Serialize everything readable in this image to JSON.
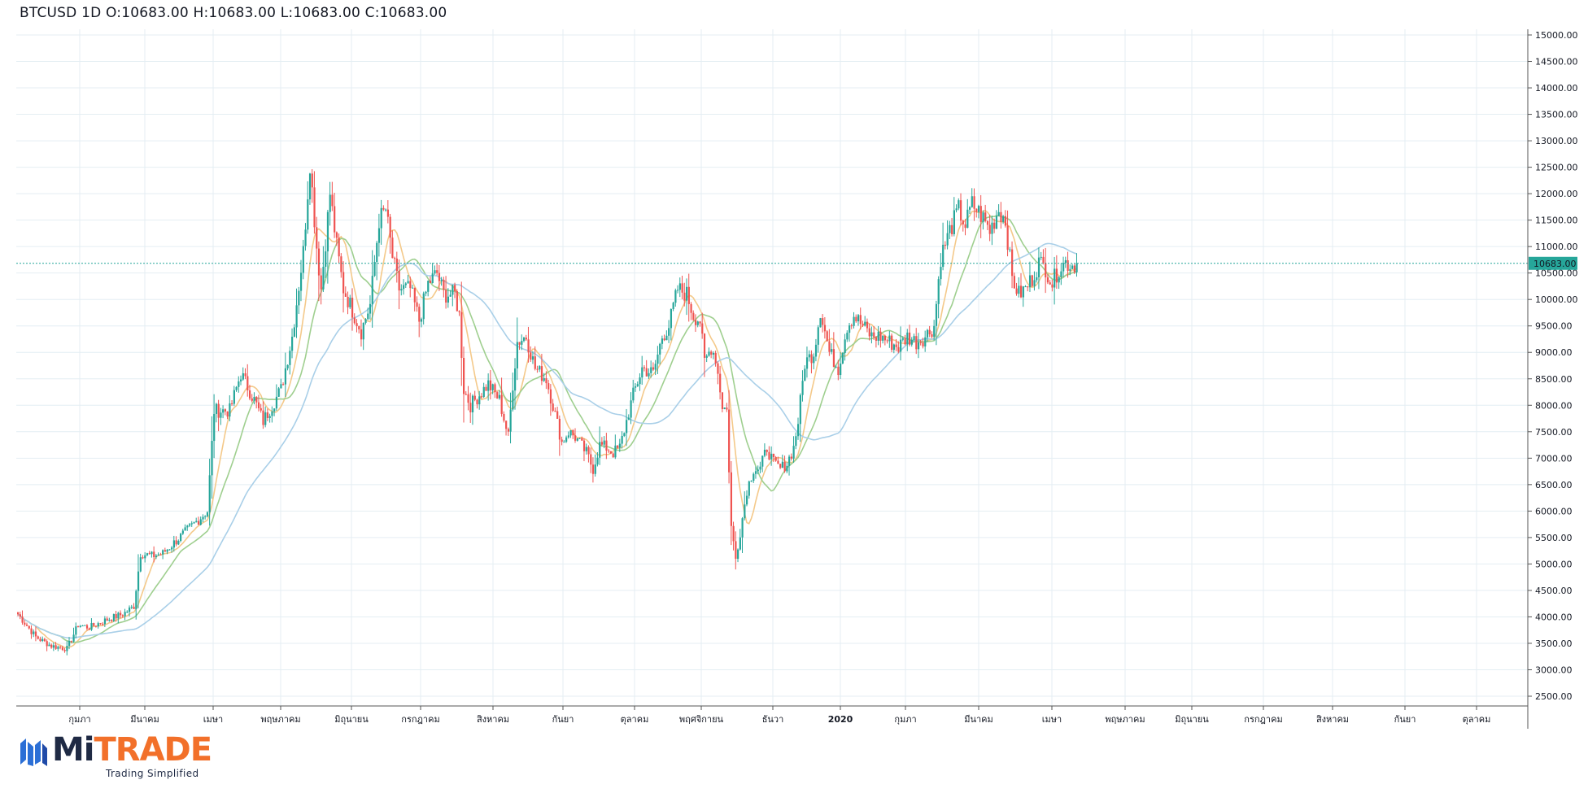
{
  "header": {
    "symbol": "BTCUSD",
    "interval": "1D",
    "ohlc": "O:10683.00 H:10683.00 L:10683.00 C:10683.00"
  },
  "chart_data": {
    "type": "candlestick",
    "series_name": "BTCUSD",
    "ylim": [
      2300,
      15250
    ],
    "y_ticks": [
      15000,
      14500,
      14000,
      13500,
      13000,
      12500,
      12000,
      11500,
      11000,
      10500,
      10000,
      9500,
      9000,
      8500,
      8000,
      7500,
      7000,
      6500,
      6000,
      5500,
      5000,
      4500,
      4000,
      3500,
      3000,
      2500
    ],
    "y_tick_labels": [
      "15000.00",
      "14500.00",
      "14000.00",
      "13500.00",
      "13000.00",
      "12500.00",
      "12000.00",
      "11500.00",
      "11000.00",
      "10500.00",
      "10000.00",
      "9500.00",
      "9000.00",
      "8500.00",
      "8000.00",
      "7500.00",
      "7000.00",
      "6500.00",
      "6000.00",
      "5500.00",
      "5000.00",
      "4500.00",
      "4000.00",
      "3500.00",
      "3000.00",
      "2500.00"
    ],
    "x_labels": [
      "กุมภา",
      "มีนาคม",
      "เมษา",
      "พฤษภาคม",
      "มิถุนายน",
      "กรกฎาคม",
      "สิงหาคม",
      "กันยา",
      "ตุลาคม",
      "พฤศจิกายน",
      "ธันวา",
      "2020",
      "กุมภา",
      "มีนาคม",
      "เมษา",
      "พฤษภาคม",
      "มิถุนายน",
      "กรกฎาคม",
      "สิงหาคม",
      "กันยา",
      "ตุลาคม"
    ],
    "x_label_bold_index": 11,
    "last_price": 10683.0,
    "last_price_label": "10683.00",
    "close_anchors": [
      [
        0,
        4050
      ],
      [
        8,
        3620
      ],
      [
        15,
        3450
      ],
      [
        22,
        3400
      ],
      [
        27,
        3850
      ],
      [
        32,
        3800
      ],
      [
        40,
        3950
      ],
      [
        47,
        4050
      ],
      [
        52,
        4200
      ],
      [
        55,
        5200
      ],
      [
        60,
        5150
      ],
      [
        65,
        5200
      ],
      [
        70,
        5400
      ],
      [
        75,
        5600
      ],
      [
        80,
        5800
      ],
      [
        85,
        6000
      ],
      [
        88,
        7900
      ],
      [
        95,
        7900
      ],
      [
        100,
        8600
      ],
      [
        106,
        8100
      ],
      [
        110,
        7700
      ],
      [
        118,
        8300
      ],
      [
        123,
        9300
      ],
      [
        128,
        10900
      ],
      [
        131,
        12600
      ],
      [
        134,
        11000
      ],
      [
        136,
        10200
      ],
      [
        140,
        12000
      ],
      [
        143,
        11000
      ],
      [
        146,
        10200
      ],
      [
        150,
        9800
      ],
      [
        154,
        9400
      ],
      [
        158,
        9900
      ],
      [
        162,
        11500
      ],
      [
        165,
        11700
      ],
      [
        168,
        10800
      ],
      [
        171,
        10200
      ],
      [
        176,
        10200
      ],
      [
        180,
        9600
      ],
      [
        184,
        10300
      ],
      [
        188,
        10500
      ],
      [
        191,
        10100
      ],
      [
        196,
        10100
      ],
      [
        198,
        9700
      ],
      [
        200,
        8300
      ],
      [
        203,
        8000
      ],
      [
        207,
        8200
      ],
      [
        211,
        8400
      ],
      [
        216,
        8100
      ],
      [
        220,
        7400
      ],
      [
        222,
        8400
      ],
      [
        224,
        9200
      ],
      [
        228,
        9300
      ],
      [
        232,
        8700
      ],
      [
        237,
        8500
      ],
      [
        240,
        8000
      ],
      [
        244,
        7300
      ],
      [
        247,
        7500
      ],
      [
        250,
        7400
      ],
      [
        255,
        7100
      ],
      [
        258,
        6800
      ],
      [
        261,
        7250
      ],
      [
        264,
        7200
      ],
      [
        267,
        7100
      ],
      [
        270,
        7200
      ],
      [
        273,
        7700
      ],
      [
        276,
        8200
      ],
      [
        280,
        8700
      ],
      [
        285,
        8600
      ],
      [
        289,
        9300
      ],
      [
        292,
        9500
      ],
      [
        296,
        10200
      ],
      [
        300,
        10100
      ],
      [
        303,
        9700
      ],
      [
        306,
        9600
      ],
      [
        308,
        8800
      ],
      [
        311,
        9100
      ],
      [
        313,
        8900
      ],
      [
        316,
        8000
      ],
      [
        318,
        7900
      ],
      [
        320,
        5700
      ],
      [
        322,
        5100
      ],
      [
        324,
        5600
      ],
      [
        327,
        6400
      ],
      [
        330,
        6800
      ],
      [
        333,
        6800
      ],
      [
        336,
        7200
      ],
      [
        339,
        6900
      ],
      [
        342,
        6800
      ],
      [
        345,
        6900
      ],
      [
        348,
        7200
      ],
      [
        350,
        7700
      ],
      [
        353,
        8800
      ],
      [
        357,
        9000
      ],
      [
        360,
        9800
      ],
      [
        364,
        9000
      ],
      [
        368,
        8700
      ],
      [
        372,
        9500
      ],
      [
        375,
        9700
      ],
      [
        379,
        9500
      ],
      [
        383,
        9300
      ],
      [
        387,
        9300
      ],
      [
        391,
        9200
      ],
      [
        395,
        9100
      ],
      [
        399,
        9300
      ],
      [
        403,
        9200
      ],
      [
        407,
        9300
      ],
      [
        411,
        9500
      ],
      [
        414,
        10800
      ],
      [
        418,
        11300
      ],
      [
        422,
        11700
      ],
      [
        425,
        11400
      ],
      [
        428,
        11800
      ],
      [
        432,
        11600
      ],
      [
        436,
        11300
      ],
      [
        440,
        11700
      ],
      [
        443,
        11500
      ],
      [
        446,
        10400
      ],
      [
        449,
        10100
      ],
      [
        452,
        10200
      ],
      [
        455,
        10400
      ],
      [
        458,
        10700
      ],
      [
        461,
        10600
      ],
      [
        464,
        10300
      ],
      [
        467,
        10600
      ],
      [
        470,
        10700
      ],
      [
        473,
        10650
      ],
      [
        475,
        10683
      ]
    ]
  }
}
